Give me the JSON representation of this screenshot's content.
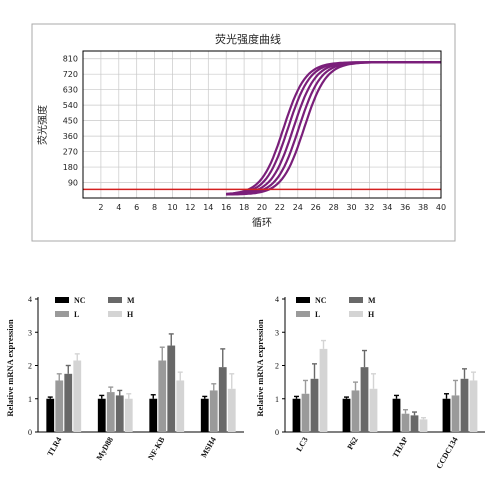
{
  "colors": {
    "amplification_curve": "#7a1f7a",
    "threshold_line": "#d42020",
    "grid": "#c8c8c8",
    "frame": "#000000",
    "NC": "#000000",
    "L": "#9a9a9a",
    "M": "#686868",
    "H": "#d4d4d4"
  },
  "chart_data": [
    {
      "type": "line",
      "title": "荧光强度曲线",
      "xlabel": "循环",
      "ylabel": "荧光强度",
      "xlim": [
        0,
        40
      ],
      "ylim": [
        0,
        855
      ],
      "x_ticks": [
        "2",
        "4",
        "6",
        "8",
        "10",
        "12",
        "14",
        "16",
        "18",
        "20",
        "22",
        "24",
        "26",
        "28",
        "30",
        "32",
        "34",
        "36",
        "38",
        "40"
      ],
      "y_ticks": [
        "90",
        "180",
        "270",
        "360",
        "450",
        "540",
        "630",
        "720",
        "810"
      ],
      "grid": true,
      "threshold": 50,
      "baseline": 20,
      "plateau": 790,
      "curve_midpoints": [
        22.4,
        22.9,
        23.5,
        24.1,
        24.7
      ],
      "curve_slope": 0.82
    },
    {
      "type": "bar",
      "ylabel": "Relative mRNA expression",
      "ylim": [
        0,
        4
      ],
      "y_ticks": [
        "0",
        "1",
        "2",
        "3",
        "4"
      ],
      "categories": [
        "TLR4",
        "MyD88",
        "NF-KB",
        "MSH4"
      ],
      "legend": [
        "NC",
        "M",
        "L",
        "H"
      ],
      "series": [
        {
          "name": "NC",
          "values": [
            1.0,
            1.0,
            1.0,
            1.0
          ],
          "errors": [
            0.05,
            0.1,
            0.12,
            0.07
          ]
        },
        {
          "name": "L",
          "values": [
            1.55,
            1.2,
            2.15,
            1.25
          ],
          "errors": [
            0.2,
            0.15,
            0.4,
            0.2
          ]
        },
        {
          "name": "M",
          "values": [
            1.75,
            1.1,
            2.6,
            1.95
          ],
          "errors": [
            0.25,
            0.15,
            0.35,
            0.55
          ]
        },
        {
          "name": "H",
          "values": [
            2.15,
            1.0,
            1.55,
            1.3
          ],
          "errors": [
            0.2,
            0.15,
            0.25,
            0.45
          ]
        }
      ]
    },
    {
      "type": "bar",
      "ylabel": "Relative mRNA expression",
      "ylim": [
        0,
        4
      ],
      "y_ticks": [
        "0",
        "1",
        "2",
        "3",
        "4"
      ],
      "categories": [
        "LC3",
        "P62",
        "THAP",
        "CCDC134"
      ],
      "legend": [
        "NC",
        "M",
        "L",
        "H"
      ],
      "series": [
        {
          "name": "NC",
          "values": [
            1.0,
            1.0,
            1.0,
            1.0
          ],
          "errors": [
            0.07,
            0.05,
            0.1,
            0.15
          ]
        },
        {
          "name": "L",
          "values": [
            1.15,
            1.25,
            0.55,
            1.1
          ],
          "errors": [
            0.4,
            0.25,
            0.12,
            0.45
          ]
        },
        {
          "name": "M",
          "values": [
            1.6,
            1.95,
            0.5,
            1.6
          ],
          "errors": [
            0.45,
            0.5,
            0.1,
            0.3
          ]
        },
        {
          "name": "H",
          "values": [
            2.5,
            1.3,
            0.38,
            1.55
          ],
          "errors": [
            0.25,
            0.45,
            0.05,
            0.25
          ]
        }
      ]
    }
  ]
}
